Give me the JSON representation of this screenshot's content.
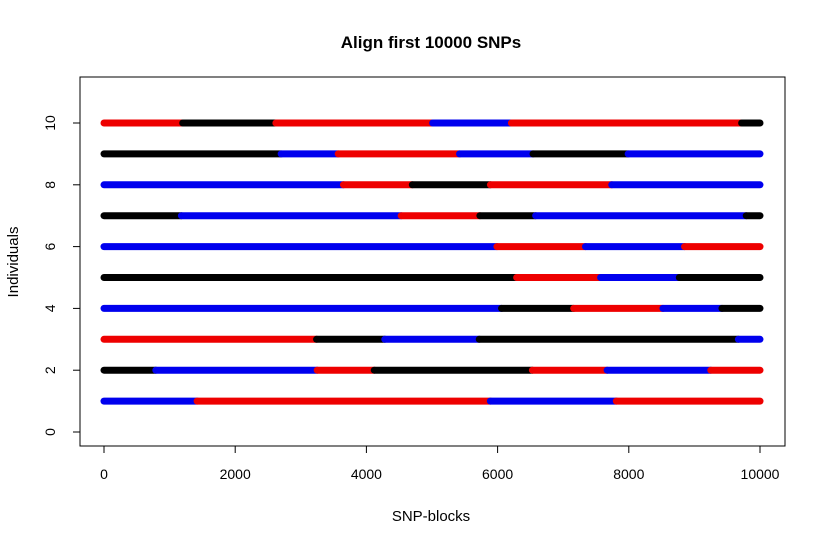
{
  "chart_data": {
    "type": "line",
    "title": "Align first 10000 SNPs",
    "xlabel": "SNP-blocks",
    "ylabel": "Individuals",
    "xlim": [
      0,
      10000
    ],
    "ylim": [
      0,
      10
    ],
    "x_ticks": [
      "0",
      "2000",
      "4000",
      "6000",
      "8000",
      "10000"
    ],
    "y_ticks": [
      "0",
      "2",
      "4",
      "6",
      "8",
      "10"
    ],
    "grid": false,
    "legend": "none",
    "colors": {
      "red": "#ee0000",
      "black": "#000000",
      "blue": "#0000ee"
    },
    "series": [
      {
        "individual": 10,
        "segments": [
          [
            0,
            1200,
            "red"
          ],
          [
            1200,
            2620,
            "black"
          ],
          [
            2620,
            5010,
            "red"
          ],
          [
            5010,
            6210,
            "blue"
          ],
          [
            6210,
            9720,
            "red"
          ],
          [
            9720,
            10000,
            "black"
          ]
        ]
      },
      {
        "individual": 9,
        "segments": [
          [
            0,
            2700,
            "black"
          ],
          [
            2700,
            3570,
            "blue"
          ],
          [
            3570,
            5420,
            "red"
          ],
          [
            5420,
            6540,
            "blue"
          ],
          [
            6540,
            7990,
            "black"
          ],
          [
            7990,
            10000,
            "blue"
          ]
        ]
      },
      {
        "individual": 8,
        "segments": [
          [
            0,
            3650,
            "blue"
          ],
          [
            3650,
            4700,
            "red"
          ],
          [
            4700,
            5890,
            "black"
          ],
          [
            5890,
            7740,
            "red"
          ],
          [
            7740,
            10000,
            "blue"
          ]
        ]
      },
      {
        "individual": 7,
        "segments": [
          [
            0,
            1180,
            "black"
          ],
          [
            1180,
            4530,
            "blue"
          ],
          [
            4530,
            5730,
            "red"
          ],
          [
            5730,
            6580,
            "black"
          ],
          [
            6580,
            9790,
            "blue"
          ],
          [
            9790,
            10000,
            "black"
          ]
        ]
      },
      {
        "individual": 6,
        "segments": [
          [
            0,
            5990,
            "blue"
          ],
          [
            5990,
            7340,
            "red"
          ],
          [
            7340,
            8850,
            "blue"
          ],
          [
            8850,
            10000,
            "red"
          ]
        ]
      },
      {
        "individual": 5,
        "segments": [
          [
            0,
            6290,
            "black"
          ],
          [
            6290,
            7570,
            "red"
          ],
          [
            7570,
            8770,
            "blue"
          ],
          [
            8770,
            10000,
            "black"
          ]
        ]
      },
      {
        "individual": 4,
        "segments": [
          [
            0,
            6060,
            "blue"
          ],
          [
            6060,
            7160,
            "black"
          ],
          [
            7160,
            8520,
            "red"
          ],
          [
            8520,
            9420,
            "blue"
          ],
          [
            9420,
            10000,
            "black"
          ]
        ]
      },
      {
        "individual": 3,
        "segments": [
          [
            0,
            3240,
            "red"
          ],
          [
            3240,
            4280,
            "black"
          ],
          [
            4280,
            5720,
            "blue"
          ],
          [
            5720,
            9670,
            "black"
          ],
          [
            9670,
            10000,
            "blue"
          ]
        ]
      },
      {
        "individual": 2,
        "segments": [
          [
            0,
            790,
            "black"
          ],
          [
            790,
            3250,
            "blue"
          ],
          [
            3250,
            4120,
            "red"
          ],
          [
            4120,
            6530,
            "black"
          ],
          [
            6530,
            7670,
            "red"
          ],
          [
            7670,
            9250,
            "blue"
          ],
          [
            9250,
            10000,
            "red"
          ]
        ]
      },
      {
        "individual": 1,
        "segments": [
          [
            0,
            1420,
            "blue"
          ],
          [
            1420,
            5890,
            "red"
          ],
          [
            5890,
            7810,
            "blue"
          ],
          [
            7810,
            10000,
            "red"
          ]
        ]
      }
    ]
  }
}
